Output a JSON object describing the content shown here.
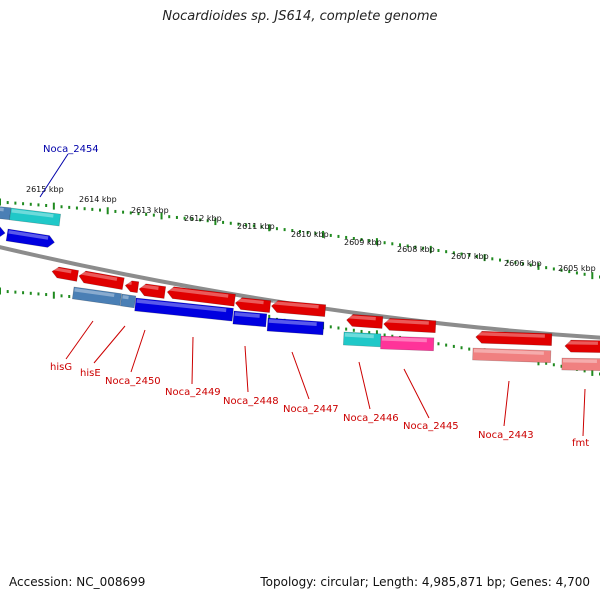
{
  "title": "Nocardioides sp. JS614, complete genome",
  "accession": "Accession: NC_008699",
  "summary": "Topology: circular; Length: 4,985,871 bp; Genes: 4,700",
  "colors": {
    "backbone": "#8c8c8c",
    "ticks": "#1f8a1f",
    "label_blue": "#0000aa",
    "label_red": "#cc0000",
    "red": "#e00000",
    "blue": "#0000e0",
    "cyan": "#20c8c8",
    "steelblue": "#4a7fb5",
    "pink": "#ff3399",
    "salmon": "#f08080"
  },
  "kbp_ticks": [
    {
      "label": "2615 kbp"
    },
    {
      "label": "2614 kbp"
    },
    {
      "label": "2613 kbp"
    },
    {
      "label": "2612 kbp"
    },
    {
      "label": "2611 kbp"
    },
    {
      "label": "2610 kbp"
    },
    {
      "label": "2609 kbp"
    },
    {
      "label": "2608 kbp"
    },
    {
      "label": "2607 kbp"
    },
    {
      "label": "2606 kbp"
    },
    {
      "label": "2605 kbp"
    }
  ],
  "gene_labels": [
    {
      "text": "Noca_2454",
      "color": "label_blue"
    },
    {
      "text": "hisG",
      "color": "label_red"
    },
    {
      "text": "hisE",
      "color": "label_red"
    },
    {
      "text": "Noca_2450",
      "color": "label_red"
    },
    {
      "text": "Noca_2449",
      "color": "label_red"
    },
    {
      "text": "Noca_2448",
      "color": "label_red"
    },
    {
      "text": "Noca_2447",
      "color": "label_red"
    },
    {
      "text": "Noca_2446",
      "color": "label_red"
    },
    {
      "text": "Noca_2445",
      "color": "label_red"
    },
    {
      "text": "Noca_2443",
      "color": "label_red"
    },
    {
      "text": "fmt",
      "color": "label_red"
    }
  ]
}
